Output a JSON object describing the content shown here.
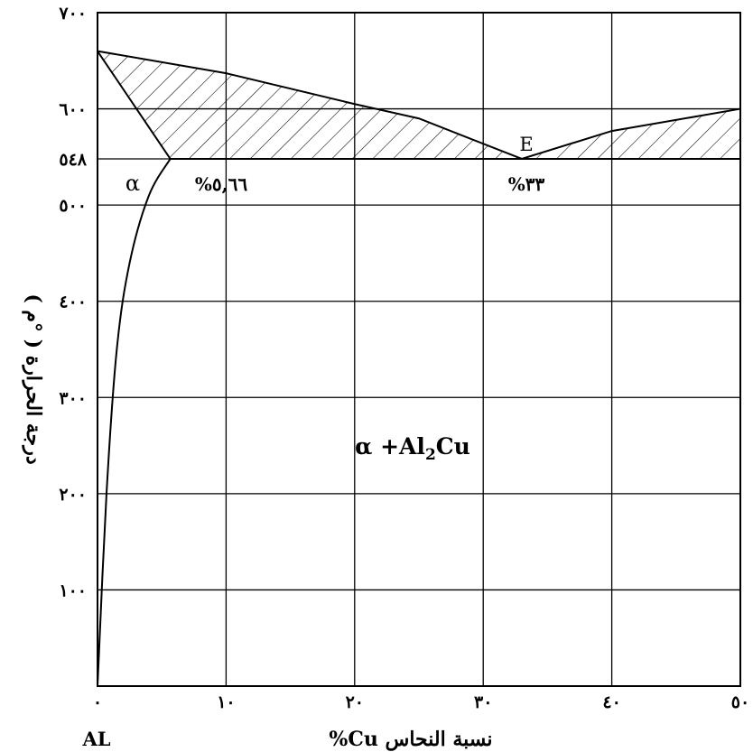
{
  "chart_data": {
    "type": "line",
    "title": "",
    "xlabel": "نسبة النحاس Cu%",
    "ylabel": "درجة الحرارة ( °م )",
    "xlim": [
      0,
      50
    ],
    "ylim": [
      0,
      700
    ],
    "grid": true,
    "x_ticks": [
      {
        "value": 0,
        "label": "٠"
      },
      {
        "value": 10,
        "label": "١٠"
      },
      {
        "value": 20,
        "label": "٢٠"
      },
      {
        "value": 30,
        "label": "٣٠"
      },
      {
        "value": 40,
        "label": "٤٠"
      },
      {
        "value": 50,
        "label": "٥٠"
      }
    ],
    "x_extra_label": "AL",
    "y_ticks": [
      {
        "value": 100,
        "label": "١٠٠"
      },
      {
        "value": 200,
        "label": "٢٠٠"
      },
      {
        "value": 300,
        "label": "٣٠٠"
      },
      {
        "value": 400,
        "label": "٤٠٠"
      },
      {
        "value": 500,
        "label": "٥٠٠"
      },
      {
        "value": 548,
        "label": "٥٤٨"
      },
      {
        "value": 600,
        "label": "٦٠٠"
      },
      {
        "value": 700,
        "label": "٧٠٠"
      }
    ],
    "series": [
      {
        "role": "liquidus",
        "x": [
          0,
          10,
          20,
          25,
          33,
          40,
          50
        ],
        "y": [
          660,
          637,
          605,
          590,
          548,
          577,
          600
        ]
      },
      {
        "role": "solidus",
        "x": [
          0,
          5.66
        ],
        "y": [
          660,
          548
        ]
      },
      {
        "role": "eutectic",
        "x": [
          5.66,
          50
        ],
        "y": [
          548,
          548
        ]
      },
      {
        "role": "solvus",
        "x": [
          0,
          0.7,
          1.5,
          2.5,
          4,
          5.66
        ],
        "y": [
          0,
          200,
          350,
          440,
          510,
          548
        ]
      }
    ],
    "shaded_region": {
      "pattern": "diagonal-hatch"
    },
    "annotations": {
      "solubility_limit": "%٥,٦٦",
      "eutectic_point": "E",
      "eutectic_composition": "%٣٣",
      "alpha_phase": "α",
      "two_phase_prefix": "α +Al",
      "two_phase_sub": "2",
      "two_phase_suffix": "Cu"
    }
  }
}
